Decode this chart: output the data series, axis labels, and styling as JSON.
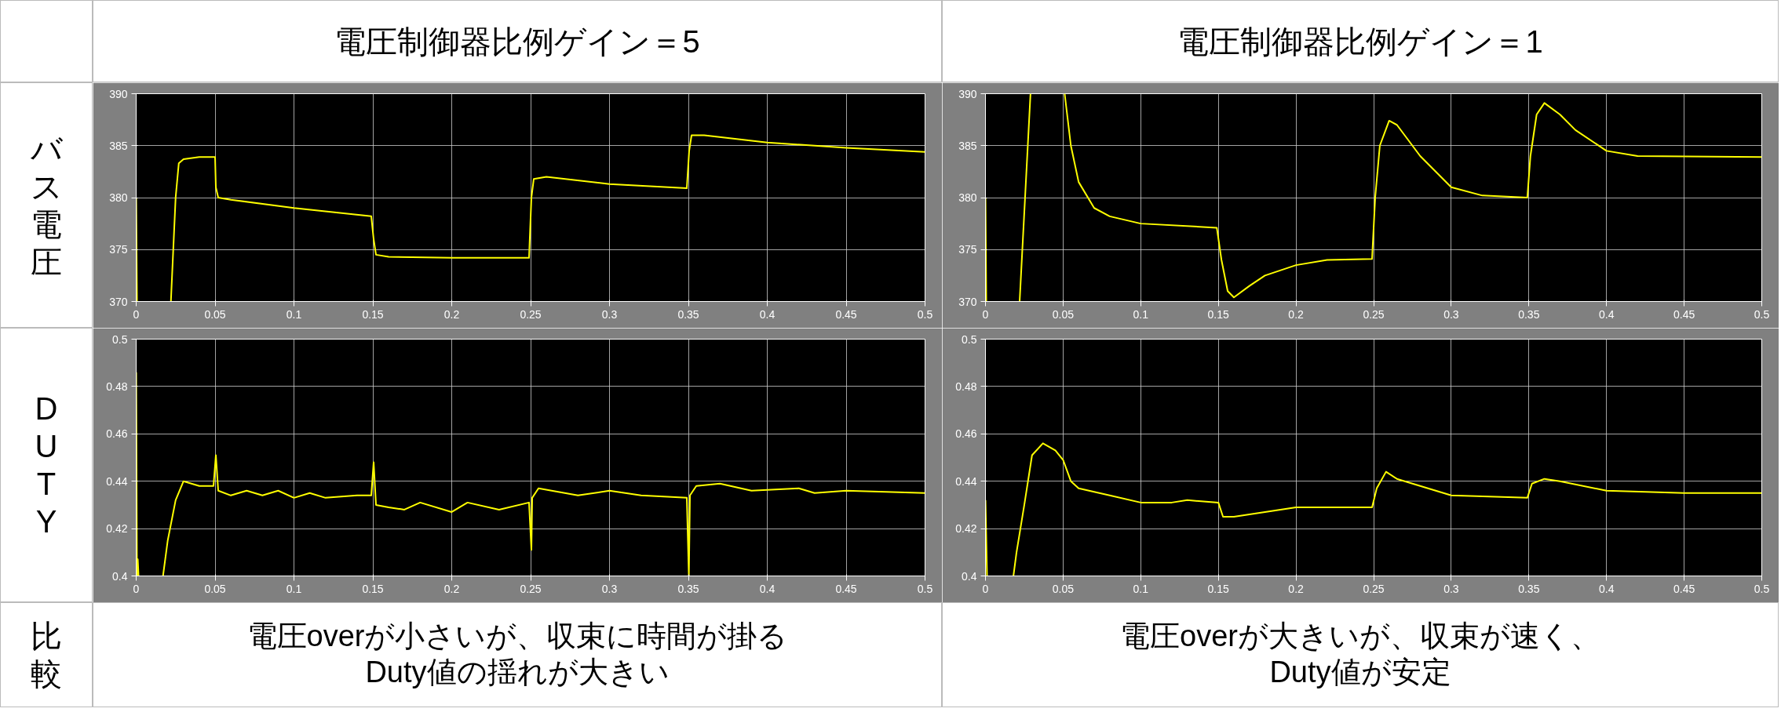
{
  "chart_data": [
    {
      "type": "line",
      "title": "電圧制御器比例ゲイン＝5",
      "ylabel": "バス電圧",
      "xlim": [
        0,
        0.5
      ],
      "xticks": [
        0,
        0.05,
        0.1,
        0.15,
        0.2,
        0.25,
        0.3,
        0.35,
        0.4,
        0.45,
        0.5
      ],
      "ylim": [
        370,
        390
      ],
      "yticks": [
        370,
        375,
        380,
        385,
        390
      ],
      "grid": true,
      "x": [
        0,
        0.0005,
        0.001,
        0.0015,
        0.022,
        0.025,
        0.027,
        0.03,
        0.04,
        0.05,
        0.0505,
        0.052,
        0.06,
        0.1,
        0.149,
        0.1505,
        0.152,
        0.16,
        0.2,
        0.249,
        0.2505,
        0.252,
        0.26,
        0.3,
        0.349,
        0.3505,
        0.352,
        0.36,
        0.4,
        0.45,
        0.5
      ],
      "series": [
        {
          "color": "#ffff00",
          "values": [
            380,
            370,
            370,
            null,
            370,
            380,
            383.3,
            383.7,
            383.9,
            383.9,
            381,
            380,
            379.8,
            379,
            378.2,
            376,
            374.5,
            374.3,
            374.2,
            374.2,
            380,
            381.8,
            382,
            381.3,
            380.9,
            384.5,
            386,
            386,
            385.3,
            384.8,
            384.4
          ]
        }
      ]
    },
    {
      "type": "line",
      "title": "電圧制御器比例ゲイン＝1",
      "xlim": [
        0,
        0.5
      ],
      "xticks": [
        0,
        0.05,
        0.1,
        0.15,
        0.2,
        0.25,
        0.3,
        0.35,
        0.4,
        0.45,
        0.5
      ],
      "ylim": [
        370,
        390
      ],
      "yticks": [
        370,
        375,
        380,
        385,
        390
      ],
      "grid": true,
      "x": [
        0,
        0.0005,
        0.001,
        0.022,
        0.029,
        0.03,
        0.051,
        0.055,
        0.06,
        0.07,
        0.08,
        0.1,
        0.149,
        0.152,
        0.156,
        0.16,
        0.17,
        0.18,
        0.2,
        0.22,
        0.249,
        0.251,
        0.254,
        0.26,
        0.265,
        0.28,
        0.3,
        0.32,
        0.349,
        0.351,
        0.355,
        0.36,
        0.37,
        0.38,
        0.4,
        0.42,
        0.5
      ],
      "series": [
        {
          "color": "#ffff00",
          "values": [
            380,
            370,
            null,
            370,
            390,
            null,
            390,
            385,
            381.5,
            379,
            378.2,
            377.5,
            377.1,
            374,
            371,
            370.4,
            371.5,
            372.5,
            373.5,
            374,
            374.1,
            380,
            385,
            387.4,
            387,
            384,
            381,
            380.2,
            380,
            384,
            388,
            389.1,
            388,
            386.5,
            384.5,
            384,
            383.9
          ]
        }
      ]
    },
    {
      "type": "line",
      "ylabel": "DUTY",
      "xlim": [
        0,
        0.5
      ],
      "xticks": [
        0,
        0.05,
        0.1,
        0.15,
        0.2,
        0.25,
        0.3,
        0.35,
        0.4,
        0.45,
        0.5
      ],
      "ylim": [
        0.4,
        0.5
      ],
      "yticks": [
        0.4,
        0.42,
        0.44,
        0.46,
        0.48,
        0.5
      ],
      "grid": true,
      "annotations": [
        "比較",
        "電圧overが小さいが、収束に時間が掛る",
        "Duty値の揺れが大きい"
      ],
      "x": [
        0,
        0.0005,
        0.001,
        0.0015,
        0.002,
        0.017,
        0.02,
        0.025,
        0.03,
        0.04,
        0.049,
        0.0505,
        0.052,
        0.06,
        0.07,
        0.08,
        0.09,
        0.1,
        0.11,
        0.12,
        0.14,
        0.149,
        0.1505,
        0.152,
        0.16,
        0.17,
        0.18,
        0.2,
        0.21,
        0.23,
        0.249,
        0.2505,
        0.251,
        0.255,
        0.28,
        0.3,
        0.32,
        0.349,
        0.3503,
        0.351,
        0.355,
        0.37,
        0.39,
        0.42,
        0.43,
        0.45,
        0.5
      ],
      "series": [
        {
          "color": "#ffff00",
          "values": [
            0.486,
            0.4,
            0.407,
            0.4,
            null,
            0.4,
            0.415,
            0.432,
            0.44,
            0.438,
            0.438,
            0.451,
            0.436,
            0.434,
            0.436,
            0.434,
            0.436,
            0.433,
            0.435,
            0.433,
            0.434,
            0.434,
            0.448,
            0.43,
            0.429,
            0.428,
            0.431,
            0.427,
            0.431,
            0.428,
            0.431,
            0.411,
            0.433,
            0.437,
            0.434,
            0.436,
            0.434,
            0.433,
            0.4,
            0.434,
            0.438,
            0.439,
            0.436,
            0.437,
            0.435,
            0.436,
            0.435
          ]
        }
      ]
    },
    {
      "type": "line",
      "xlim": [
        0,
        0.5
      ],
      "xticks": [
        0,
        0.05,
        0.1,
        0.15,
        0.2,
        0.25,
        0.3,
        0.35,
        0.4,
        0.45,
        0.5
      ],
      "ylim": [
        0.4,
        0.5
      ],
      "yticks": [
        0.4,
        0.42,
        0.44,
        0.46,
        0.48,
        0.5
      ],
      "grid": true,
      "annotations": [
        "電圧overが大きいが、収束が速く、",
        "Duty値が安定"
      ],
      "x": [
        0,
        0.001,
        0.002,
        0.018,
        0.02,
        0.025,
        0.03,
        0.037,
        0.045,
        0.05,
        0.055,
        0.06,
        0.08,
        0.1,
        0.12,
        0.13,
        0.15,
        0.153,
        0.16,
        0.18,
        0.2,
        0.249,
        0.252,
        0.258,
        0.265,
        0.28,
        0.3,
        0.349,
        0.352,
        0.36,
        0.37,
        0.4,
        0.45,
        0.5
      ],
      "series": [
        {
          "color": "#ffff00",
          "values": [
            0.432,
            0.4,
            null,
            0.4,
            0.41,
            0.43,
            0.451,
            0.456,
            0.453,
            0.449,
            0.44,
            0.437,
            0.434,
            0.431,
            0.431,
            0.432,
            0.431,
            0.425,
            0.425,
            0.427,
            0.429,
            0.429,
            0.437,
            0.444,
            0.441,
            0.438,
            0.434,
            0.433,
            0.439,
            0.441,
            0.44,
            0.436,
            0.435,
            0.435
          ]
        }
      ]
    }
  ]
}
